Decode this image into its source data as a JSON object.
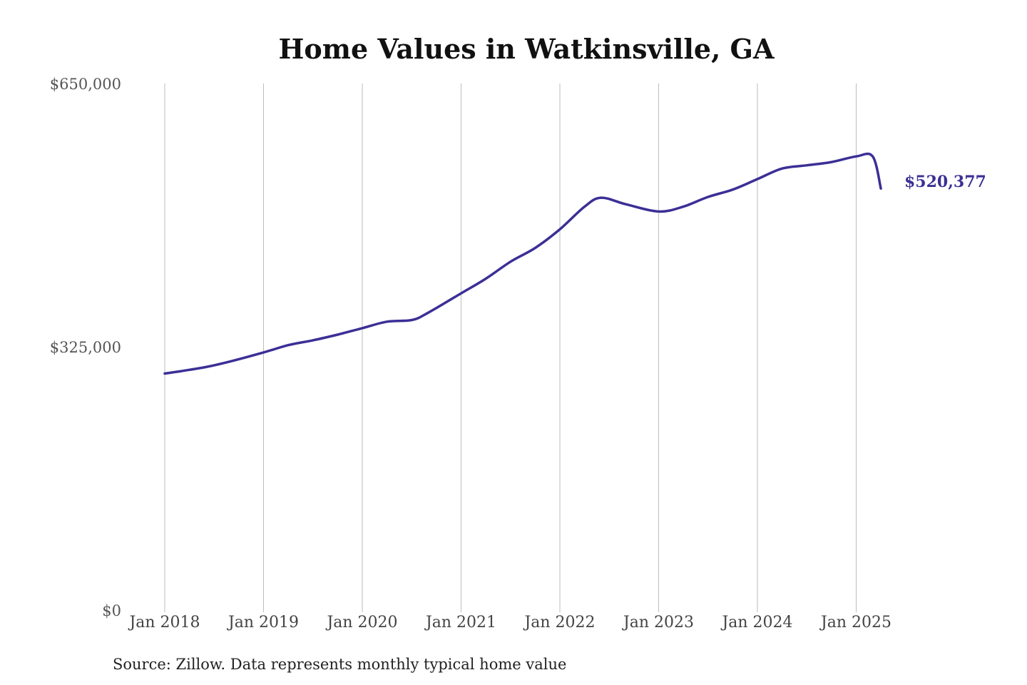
{
  "colors": {
    "series": "#3b2f96",
    "grid": "#bdbdbd"
  },
  "source_note": "Source: Zillow. Data represents monthly typical home value",
  "chart_data": {
    "type": "line",
    "title": "Home Values in Watkinsville, GA",
    "xlabel": "",
    "ylabel": "",
    "ylim": [
      0,
      650000
    ],
    "xlim": [
      "2018-01",
      "2025-04"
    ],
    "grid": {
      "vertical": true,
      "horizontal": false
    },
    "y_ticks": [
      {
        "value": 0,
        "label": "$0"
      },
      {
        "value": 325000,
        "label": "$325,000"
      },
      {
        "value": 650000,
        "label": "$650,000"
      }
    ],
    "x_ticks": [
      {
        "value": "2018-01",
        "label": "Jan 2018"
      },
      {
        "value": "2019-01",
        "label": "Jan 2019"
      },
      {
        "value": "2020-01",
        "label": "Jan 2020"
      },
      {
        "value": "2021-01",
        "label": "Jan 2021"
      },
      {
        "value": "2022-01",
        "label": "Jan 2022"
      },
      {
        "value": "2023-01",
        "label": "Jan 2023"
      },
      {
        "value": "2024-01",
        "label": "Jan 2024"
      },
      {
        "value": "2025-01",
        "label": "Jan 2025"
      }
    ],
    "end_label": "$520,377",
    "series": [
      {
        "x": [
          "2018-01",
          "2018-03",
          "2018-06",
          "2018-09",
          "2019-01",
          "2019-04",
          "2019-07",
          "2019-10",
          "2020-01",
          "2020-04",
          "2020-07",
          "2020-09",
          "2021-01",
          "2021-04",
          "2021-07",
          "2021-10",
          "2022-01",
          "2022-04",
          "2022-06",
          "2022-09",
          "2023-01",
          "2023-04",
          "2023-07",
          "2023-10",
          "2024-01",
          "2024-04",
          "2024-07",
          "2024-10",
          "2025-01",
          "2025-03",
          "2025-04"
        ],
        "y": [
          292000,
          295000,
          300000,
          307000,
          318000,
          327000,
          333000,
          340000,
          348000,
          356000,
          358000,
          367000,
          391000,
          409000,
          430000,
          447000,
          470000,
          498000,
          509000,
          501000,
          492000,
          498000,
          510000,
          519000,
          532000,
          545000,
          549000,
          553000,
          560000,
          560000,
          520377
        ]
      }
    ]
  }
}
